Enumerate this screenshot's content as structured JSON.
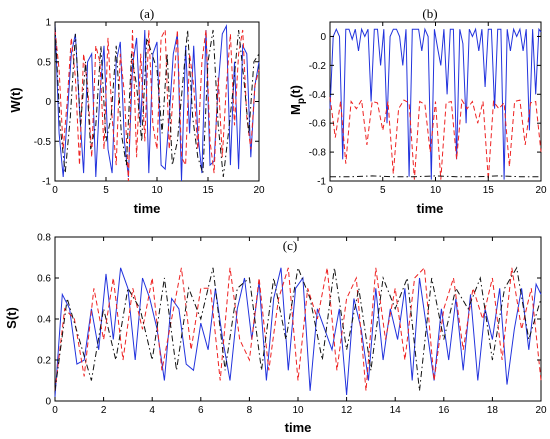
{
  "chart_data": [
    {
      "type": "line",
      "title": "(a)",
      "xlabel": "time",
      "ylabel": "W(t)",
      "xlim": [
        0,
        20
      ],
      "ylim": [
        -1,
        1
      ],
      "xticks": [
        "0",
        "5",
        "10",
        "15",
        "20"
      ],
      "yticks": [
        "-1",
        "-0.5",
        "0",
        "0.5",
        "1"
      ],
      "grid": false,
      "series": [
        {
          "style": "solid",
          "color": "#2233dd",
          "x": [
            0,
            0.4,
            0.8,
            1.2,
            1.6,
            2.0,
            2.4,
            2.8,
            3.2,
            3.6,
            4.0,
            4.4,
            4.8,
            5.2,
            5.6,
            6.0,
            6.4,
            6.8,
            7.2,
            7.6,
            8.0,
            8.4,
            8.8,
            9.2,
            9.6,
            10.0,
            10.4,
            10.8,
            11.2,
            11.6,
            12.0,
            12.4,
            12.8,
            13.2,
            13.6,
            14.0,
            14.4,
            14.8,
            15.2,
            15.6,
            16.0,
            16.4,
            16.8,
            17.2,
            17.6,
            18.0,
            18.4,
            18.8,
            19.2,
            19.6,
            20.0
          ],
          "y": [
            1.0,
            -0.4,
            -0.95,
            -0.2,
            0.6,
            0.85,
            -0.1,
            -0.9,
            0.5,
            0.6,
            -0.95,
            0.1,
            0.7,
            -0.6,
            -0.9,
            0.5,
            0.75,
            -0.5,
            -0.95,
            0.45,
            0.8,
            -0.3,
            0.9,
            -0.9,
            0.6,
            0.75,
            -0.8,
            -0.85,
            -0.2,
            0.6,
            0.85,
            -1.0,
            0.7,
            -0.4,
            0.7,
            -0.4,
            -0.9,
            0.9,
            -0.8,
            -0.75,
            0.2,
            0.85,
            0.95,
            -0.8,
            0.5,
            -0.85,
            0.7,
            0.6,
            -0.7,
            0.2,
            0.5
          ]
        },
        {
          "style": "dashed",
          "color": "#ee2222",
          "x": [
            0,
            0.4,
            0.8,
            1.2,
            1.6,
            2.0,
            2.4,
            2.8,
            3.2,
            3.6,
            4.0,
            4.4,
            4.8,
            5.2,
            5.6,
            6.0,
            6.4,
            6.8,
            7.2,
            7.6,
            8.0,
            8.4,
            8.8,
            9.2,
            9.6,
            10.0,
            10.4,
            10.8,
            11.2,
            11.6,
            12.0,
            12.4,
            12.8,
            13.2,
            13.6,
            14.0,
            14.4,
            14.8,
            15.2,
            15.6,
            16.0,
            16.4,
            16.8,
            17.2,
            17.6,
            18.0,
            18.4,
            18.8,
            19.2,
            19.6,
            20.0
          ],
          "y": [
            0.9,
            0.4,
            -0.6,
            0.0,
            0.8,
            0.3,
            -0.8,
            0.6,
            0.2,
            -0.7,
            0.7,
            0.5,
            -0.6,
            0.8,
            -0.2,
            -0.8,
            0.6,
            0.1,
            -1.0,
            0.9,
            -0.7,
            0.6,
            -0.5,
            0.9,
            -0.3,
            -0.6,
            0.8,
            0.9,
            -0.6,
            0.1,
            0.9,
            -0.7,
            -0.8,
            0.6,
            0.2,
            -0.6,
            0.5,
            0.9,
            -0.5,
            -0.9,
            0.3,
            -0.7,
            0.2,
            0.85,
            -0.3,
            0.6,
            0.9,
            -0.2,
            -0.6,
            0.2,
            0.4
          ]
        },
        {
          "style": "dashdot",
          "color": "#111111",
          "x": [
            0,
            0.5,
            1.0,
            1.5,
            2.0,
            2.5,
            3.0,
            3.5,
            4.0,
            4.5,
            5.0,
            5.5,
            6.0,
            6.5,
            7.0,
            7.5,
            8.0,
            8.5,
            9.0,
            9.5,
            10.0,
            10.5,
            11.0,
            11.5,
            12.0,
            12.5,
            13.0,
            13.5,
            14.0,
            14.5,
            15.0,
            15.5,
            16.0,
            16.5,
            17.0,
            17.5,
            18.0,
            18.5,
            19.0,
            19.5,
            20.0
          ],
          "y": [
            0.95,
            -0.3,
            -0.9,
            -0.2,
            0.85,
            -0.3,
            0.5,
            -0.6,
            -0.3,
            0.7,
            -0.5,
            -0.2,
            0.7,
            -0.4,
            -0.8,
            0.6,
            0.2,
            -0.5,
            0.8,
            0.6,
            0.4,
            -0.4,
            0.6,
            -0.8,
            -0.5,
            0.2,
            0.9,
            -0.2,
            -0.7,
            -0.9,
            0.5,
            0.9,
            -0.3,
            -0.95,
            -0.4,
            0.2,
            0.9,
            0.3,
            -0.4,
            0.5,
            0.6
          ]
        }
      ]
    },
    {
      "type": "line",
      "title": "(b)",
      "xlabel": "time",
      "ylabel": "M_p(t)",
      "xlim": [
        0,
        20
      ],
      "ylim": [
        -1,
        0.1
      ],
      "xticks": [
        "0",
        "5",
        "10",
        "15",
        "20"
      ],
      "yticks": [
        "-1",
        "-0.8",
        "-0.6",
        "-0.4",
        "-0.2",
        "0"
      ],
      "grid": false,
      "series": [
        {
          "style": "solid",
          "color": "#2233dd",
          "x": [
            0,
            0.3,
            0.6,
            0.9,
            1.2,
            1.5,
            1.8,
            2.1,
            2.4,
            2.7,
            3.0,
            3.3,
            3.6,
            3.9,
            4.2,
            4.5,
            4.8,
            5.1,
            5.4,
            5.7,
            6.0,
            6.3,
            6.6,
            6.9,
            7.2,
            7.5,
            7.8,
            8.1,
            8.4,
            8.7,
            9.0,
            9.3,
            9.6,
            9.9,
            10.2,
            10.5,
            10.8,
            11.1,
            11.4,
            11.7,
            12.0,
            12.3,
            12.6,
            12.9,
            13.2,
            13.5,
            13.8,
            14.1,
            14.4,
            14.7,
            15.0,
            15.3,
            15.6,
            15.9,
            16.2,
            16.5,
            16.8,
            17.1,
            17.4,
            17.7,
            18.0,
            18.3,
            18.6,
            18.9,
            19.2,
            19.5,
            19.8,
            20.0
          ],
          "y": [
            -0.5,
            0.0,
            0.05,
            0.0,
            -0.85,
            0.05,
            0.05,
            -0.02,
            0.05,
            -0.1,
            0.05,
            0.0,
            0.05,
            -0.45,
            0.05,
            0.05,
            -0.2,
            0.05,
            -0.6,
            0.0,
            0.05,
            0.05,
            0.0,
            -0.2,
            0.05,
            -0.97,
            0.05,
            0.05,
            0.05,
            -0.1,
            0.05,
            0.0,
            -0.99,
            0.05,
            -0.08,
            -0.2,
            0.05,
            -0.4,
            0.05,
            0.05,
            -0.85,
            0.05,
            -0.05,
            -0.6,
            0.05,
            0.0,
            0.05,
            -0.1,
            0.05,
            -0.35,
            0.05,
            0.05,
            -0.5,
            0.05,
            0.05,
            -0.99,
            0.05,
            -0.1,
            0.05,
            0.0,
            0.05,
            -0.1,
            0.05,
            -0.65,
            0.05,
            -0.4,
            0.05,
            0.03
          ]
        },
        {
          "style": "dashed",
          "color": "#ee2222",
          "x": [
            0,
            0.5,
            1.0,
            1.5,
            2.0,
            2.5,
            3.0,
            3.5,
            4.0,
            4.5,
            5.0,
            5.5,
            6.0,
            6.5,
            7.0,
            7.5,
            8.0,
            8.5,
            9.0,
            9.5,
            10.0,
            10.5,
            11.0,
            11.5,
            12.0,
            12.5,
            13.0,
            13.5,
            14.0,
            14.5,
            15.0,
            15.5,
            16.0,
            16.5,
            17.0,
            17.5,
            18.0,
            18.5,
            19.0,
            19.5,
            20.0
          ],
          "y": [
            -0.42,
            -0.7,
            -0.45,
            -0.88,
            -0.45,
            -0.5,
            -0.44,
            -0.75,
            -0.45,
            -0.46,
            -0.65,
            -0.45,
            -0.95,
            -0.5,
            -0.44,
            -0.46,
            -0.99,
            -0.45,
            -0.47,
            -0.8,
            -0.45,
            -0.99,
            -0.46,
            -0.45,
            -0.85,
            -0.44,
            -0.5,
            -0.45,
            -0.6,
            -0.45,
            -0.99,
            -0.45,
            -0.5,
            -0.46,
            -0.9,
            -0.45,
            -0.44,
            -0.75,
            -0.46,
            -0.45,
            -0.8
          ]
        },
        {
          "style": "dashdot",
          "color": "#111111",
          "x": [
            0,
            2,
            4,
            6,
            8,
            10,
            12,
            14,
            16,
            18,
            20
          ],
          "y": [
            -0.97,
            -0.97,
            -0.965,
            -0.97,
            -0.97,
            -0.965,
            -0.97,
            -0.97,
            -0.965,
            -0.97,
            -0.97
          ]
        }
      ]
    },
    {
      "type": "line",
      "title": "(c)",
      "xlabel": "time",
      "ylabel": "S(t)",
      "xlim": [
        0,
        20
      ],
      "ylim": [
        0,
        0.8
      ],
      "xticks": [
        "0",
        "2",
        "4",
        "6",
        "8",
        "10",
        "12",
        "14",
        "16",
        "18",
        "20"
      ],
      "yticks": [
        "0",
        "0.2",
        "0.4",
        "0.6",
        "0.8"
      ],
      "grid": false,
      "series": [
        {
          "style": "solid",
          "color": "#2233dd",
          "x": [
            0,
            0.3,
            0.6,
            0.9,
            1.2,
            1.5,
            1.8,
            2.1,
            2.4,
            2.7,
            3.0,
            3.3,
            3.6,
            3.9,
            4.2,
            4.5,
            4.8,
            5.1,
            5.4,
            5.7,
            6.0,
            6.3,
            6.6,
            6.9,
            7.2,
            7.5,
            7.8,
            8.1,
            8.4,
            8.7,
            9.0,
            9.3,
            9.6,
            9.9,
            10.2,
            10.5,
            10.8,
            11.1,
            11.4,
            11.7,
            12.0,
            12.3,
            12.6,
            12.9,
            13.2,
            13.5,
            13.8,
            14.1,
            14.4,
            14.7,
            15.0,
            15.3,
            15.6,
            15.9,
            16.2,
            16.5,
            16.8,
            17.1,
            17.4,
            17.7,
            18.0,
            18.3,
            18.6,
            18.9,
            19.2,
            19.5,
            19.8,
            20.0
          ],
          "y": [
            0.02,
            0.52,
            0.45,
            0.18,
            0.2,
            0.45,
            0.25,
            0.62,
            0.3,
            0.65,
            0.55,
            0.2,
            0.6,
            0.5,
            0.35,
            0.1,
            0.5,
            0.45,
            0.18,
            0.15,
            0.38,
            0.25,
            0.55,
            0.3,
            0.1,
            0.45,
            0.6,
            0.3,
            0.58,
            0.1,
            0.5,
            0.65,
            0.15,
            0.55,
            0.6,
            0.05,
            0.45,
            0.35,
            0.25,
            0.45,
            0.03,
            0.5,
            0.35,
            0.1,
            0.55,
            0.2,
            0.45,
            0.3,
            0.55,
            0.1,
            0.6,
            0.35,
            0.1,
            0.45,
            0.2,
            0.5,
            0.15,
            0.52,
            0.1,
            0.45,
            0.3,
            0.55,
            0.08,
            0.35,
            0.55,
            0.25,
            0.57,
            0.52
          ]
        },
        {
          "style": "dashed",
          "color": "#ee2222",
          "x": [
            0,
            0.4,
            0.8,
            1.2,
            1.6,
            2.0,
            2.4,
            2.8,
            3.2,
            3.6,
            4.0,
            4.4,
            4.8,
            5.2,
            5.6,
            6.0,
            6.4,
            6.8,
            7.2,
            7.6,
            8.0,
            8.4,
            8.8,
            9.2,
            9.6,
            10.0,
            10.4,
            10.8,
            11.2,
            11.6,
            12.0,
            12.4,
            12.8,
            13.2,
            13.6,
            14.0,
            14.4,
            14.8,
            15.2,
            15.6,
            16.0,
            16.4,
            16.8,
            17.2,
            17.6,
            18.0,
            18.4,
            18.8,
            19.2,
            19.6,
            20.0
          ],
          "y": [
            0.05,
            0.45,
            0.4,
            0.12,
            0.55,
            0.3,
            0.6,
            0.2,
            0.55,
            0.35,
            0.6,
            0.15,
            0.4,
            0.65,
            0.25,
            0.55,
            0.55,
            0.1,
            0.65,
            0.3,
            0.2,
            0.6,
            0.15,
            0.5,
            0.65,
            0.1,
            0.55,
            0.4,
            0.65,
            0.15,
            0.5,
            0.6,
            0.05,
            0.65,
            0.3,
            0.55,
            0.2,
            0.6,
            0.65,
            0.1,
            0.45,
            0.6,
            0.25,
            0.55,
            0.4,
            0.6,
            0.2,
            0.65,
            0.35,
            0.55,
            0.1
          ]
        },
        {
          "style": "dashdot",
          "color": "#111111",
          "x": [
            0,
            0.5,
            1.0,
            1.5,
            2.0,
            2.5,
            3.0,
            3.5,
            4.0,
            4.5,
            5.0,
            5.5,
            6.0,
            6.5,
            7.0,
            7.5,
            8.0,
            8.5,
            9.0,
            9.5,
            10.0,
            10.5,
            11.0,
            11.5,
            12.0,
            12.5,
            13.0,
            13.5,
            14.0,
            14.5,
            15.0,
            15.5,
            16.0,
            16.5,
            17.0,
            17.5,
            18.0,
            18.5,
            19.0,
            19.5,
            20.0
          ],
          "y": [
            0.05,
            0.5,
            0.3,
            0.1,
            0.45,
            0.2,
            0.55,
            0.45,
            0.2,
            0.6,
            0.15,
            0.55,
            0.4,
            0.65,
            0.15,
            0.55,
            0.6,
            0.15,
            0.6,
            0.3,
            0.65,
            0.5,
            0.2,
            0.65,
            0.25,
            0.55,
            0.15,
            0.6,
            0.45,
            0.6,
            0.05,
            0.6,
            0.3,
            0.55,
            0.45,
            0.6,
            0.2,
            0.55,
            0.65,
            0.3,
            0.5
          ]
        }
      ]
    }
  ]
}
